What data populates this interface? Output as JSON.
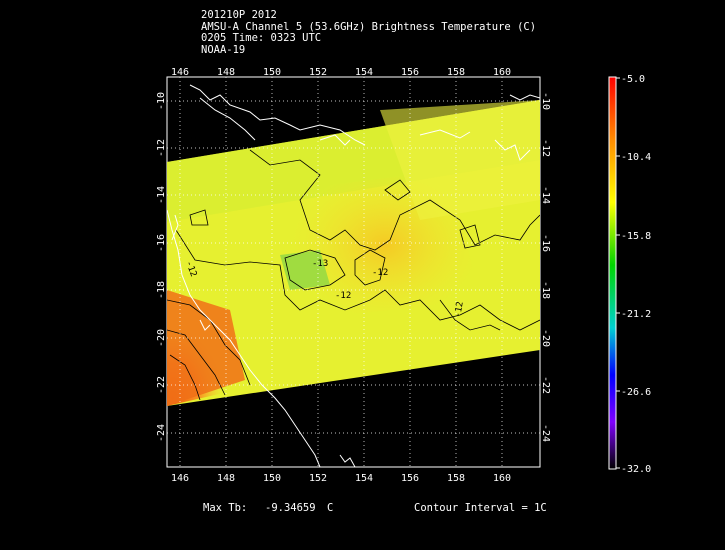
{
  "header": {
    "line1": "201210P 2012",
    "line2": "AMSU-A Channel 5 (53.6GHz) Brightness Temperature (C)",
    "line3": "0205 Time: 0323 UTC",
    "line4": "NOAA-19"
  },
  "map": {
    "lon_ticks": [
      "146",
      "148",
      "150",
      "152",
      "154",
      "156",
      "158",
      "160"
    ],
    "lat_ticks": [
      "-10",
      "-12",
      "-14",
      "-16",
      "-18",
      "-20",
      "-22",
      "-24"
    ],
    "contour_labels": [
      "-12",
      "-12",
      "-13",
      "-12",
      "-12"
    ],
    "colors": {
      "background": "#000000",
      "coast": "#ffffff",
      "grid": "#ffffff",
      "contour": "#000000"
    }
  },
  "colorbar": {
    "labels": [
      "-5.0",
      "-10.4",
      "-15.8",
      "-21.2",
      "-26.6",
      "-32.0"
    ],
    "colors": [
      "#ff0000",
      "#ff8c00",
      "#ffff00",
      "#00d400",
      "#00d0d0",
      "#0000ff",
      "#8000ff",
      "#000000"
    ]
  },
  "footer": {
    "max_tb_label": "Max Tb:",
    "max_tb_value": "-9.34659",
    "max_tb_unit": "C",
    "contour_interval": "Contour Interval = 1C"
  }
}
